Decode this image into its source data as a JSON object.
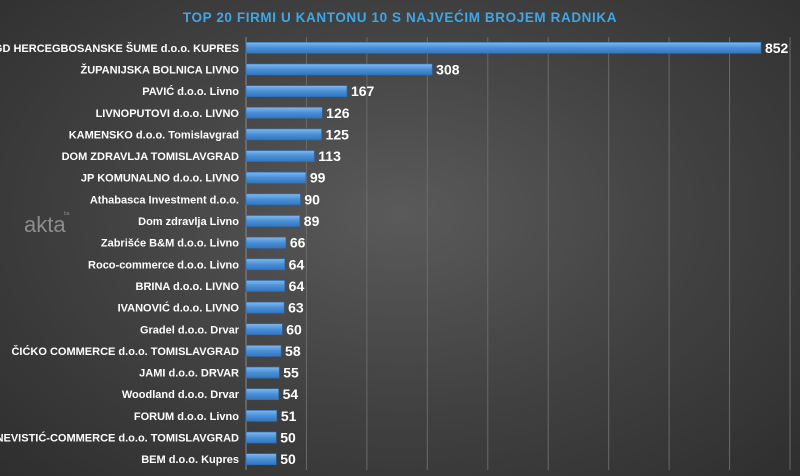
{
  "chart_data": {
    "type": "bar",
    "orientation": "horizontal",
    "title": "TOP 20 FIRMI U KANTONU 10 S NAJVEĆIM BROJEM RADNIKA",
    "categories": [
      "ŠGD HERCEGBOSANSKE ŠUME d.o.o. KUPRES",
      "ŽUPANIJSKA BOLNICA LIVNO",
      "PAVIĆ d.o.o. Livno",
      "LIVNOPUTOVI d.o.o. LIVNO",
      "KAMENSKO d.o.o. Tomislavgrad",
      "DOM ZDRAVLJA TOMISLAVGRAD",
      "JP KOMUNALNO d.o.o. LIVNO",
      "Athabasca Investment d.o.o.",
      "Dom zdravlja Livno",
      "Zabrišće B&M d.o.o. Livno",
      "Roco-commerce d.o.o. Livno",
      "BRINA d.o.o. LIVNO",
      "IVANOVIĆ d.o.o. LIVNO",
      "Gradel d.o.o. Drvar",
      "ČIĆKO COMMERCE d.o.o. TOMISLAVGRAD",
      "JAMI d.o.o. DRVAR",
      "Woodland d.o.o. Drvar",
      "FORUM d.o.o. Livno",
      "NEVISTIĆ-COMMERCE d.o.o. TOMISLAVGRAD",
      "BEM d.o.o. Kupres"
    ],
    "values": [
      852,
      308,
      167,
      126,
      125,
      113,
      99,
      90,
      89,
      66,
      64,
      64,
      63,
      60,
      58,
      55,
      54,
      51,
      50,
      50
    ],
    "xlim": [
      0,
      900
    ],
    "grid": true,
    "legend": "none",
    "colors": {
      "bar": "#4a8fd6",
      "bar_light": "#7fb8ee",
      "bar_edge": "#2f6fb3",
      "title": "#3fa7e6",
      "text": "#ffffff",
      "background": "#4a4a4a"
    }
  },
  "watermark": {
    "text": "akta",
    "mark": "ba"
  }
}
